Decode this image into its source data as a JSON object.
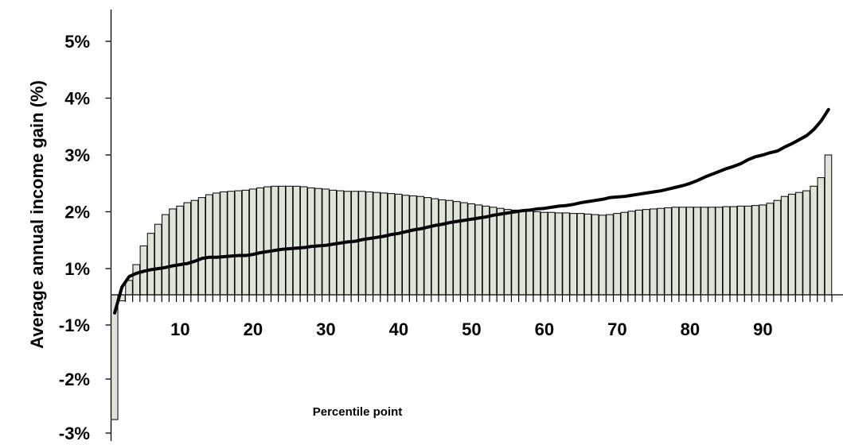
{
  "chart_data": {
    "type": "bar",
    "title": "",
    "xlabel": "Percentile point",
    "ylabel": "Average annual income gain (%)",
    "ylim": [
      -3,
      5
    ],
    "xlim": [
      1,
      99
    ],
    "y_ticks": [
      -3,
      -2,
      -1,
      1,
      2,
      3,
      4,
      5
    ],
    "y_tick_labels": [
      "-3%",
      "-2%",
      "-1%",
      "1%",
      "2%",
      "3%",
      "4%",
      "5%"
    ],
    "x_ticks": [
      10,
      20,
      30,
      40,
      50,
      60,
      70,
      80,
      90
    ],
    "x_tick_labels": [
      "10",
      "20",
      "30",
      "40",
      "50",
      "60",
      "70",
      "80",
      "90"
    ],
    "grid": false,
    "legend": "none",
    "colors": {
      "bars": "#dde5d8",
      "bar_border": "#000000",
      "line": "#000000"
    },
    "x": [
      1,
      2,
      3,
      4,
      5,
      6,
      7,
      8,
      9,
      10,
      11,
      12,
      13,
      14,
      15,
      16,
      17,
      18,
      19,
      20,
      21,
      22,
      23,
      24,
      25,
      26,
      27,
      28,
      29,
      30,
      31,
      32,
      33,
      34,
      35,
      36,
      37,
      38,
      39,
      40,
      41,
      42,
      43,
      44,
      45,
      46,
      47,
      48,
      49,
      50,
      51,
      52,
      53,
      54,
      55,
      56,
      57,
      58,
      59,
      60,
      61,
      62,
      63,
      64,
      65,
      66,
      67,
      68,
      69,
      70,
      71,
      72,
      73,
      74,
      75,
      76,
      77,
      78,
      79,
      80,
      81,
      82,
      83,
      84,
      85,
      86,
      87,
      88,
      89,
      90,
      91,
      92,
      93,
      94,
      95,
      96,
      97,
      98,
      99
    ],
    "series": [
      {
        "kind": "bar",
        "values": [
          -2.75,
          -0.2,
          0.55,
          1.07,
          1.4,
          1.62,
          1.78,
          1.95,
          2.05,
          2.1,
          2.16,
          2.2,
          2.25,
          2.3,
          2.33,
          2.35,
          2.36,
          2.37,
          2.38,
          2.4,
          2.42,
          2.44,
          2.45,
          2.45,
          2.45,
          2.45,
          2.44,
          2.42,
          2.41,
          2.4,
          2.38,
          2.37,
          2.36,
          2.36,
          2.36,
          2.35,
          2.34,
          2.33,
          2.32,
          2.31,
          2.29,
          2.28,
          2.27,
          2.25,
          2.23,
          2.21,
          2.2,
          2.18,
          2.16,
          2.14,
          2.12,
          2.1,
          2.08,
          2.06,
          2.04,
          2.03,
          2.02,
          2.01,
          2.0,
          1.99,
          1.99,
          1.98,
          1.98,
          1.97,
          1.97,
          1.96,
          1.95,
          1.94,
          1.95,
          1.97,
          1.99,
          2.01,
          2.03,
          2.04,
          2.05,
          2.06,
          2.07,
          2.08,
          2.08,
          2.08,
          2.08,
          2.08,
          2.08,
          2.08,
          2.09,
          2.09,
          2.1,
          2.1,
          2.11,
          2.12,
          2.15,
          2.2,
          2.27,
          2.31,
          2.34,
          2.37,
          2.45,
          2.6,
          3.0
        ]
      },
      {
        "kind": "line",
        "values": [
          -0.6,
          0.3,
          0.7,
          0.82,
          0.9,
          0.96,
          1.0,
          1.02,
          1.05,
          1.07,
          1.09,
          1.13,
          1.18,
          1.2,
          1.2,
          1.21,
          1.22,
          1.23,
          1.23,
          1.25,
          1.28,
          1.3,
          1.32,
          1.34,
          1.35,
          1.36,
          1.37,
          1.39,
          1.4,
          1.41,
          1.43,
          1.45,
          1.47,
          1.48,
          1.51,
          1.53,
          1.55,
          1.57,
          1.6,
          1.62,
          1.65,
          1.68,
          1.7,
          1.73,
          1.76,
          1.78,
          1.81,
          1.83,
          1.85,
          1.87,
          1.89,
          1.91,
          1.94,
          1.96,
          1.98,
          2.0,
          2.02,
          2.03,
          2.05,
          2.06,
          2.08,
          2.1,
          2.11,
          2.13,
          2.16,
          2.18,
          2.2,
          2.22,
          2.25,
          2.26,
          2.27,
          2.29,
          2.31,
          2.33,
          2.35,
          2.37,
          2.4,
          2.43,
          2.46,
          2.5,
          2.55,
          2.61,
          2.66,
          2.71,
          2.76,
          2.8,
          2.85,
          2.92,
          2.97,
          3.0,
          3.04,
          3.07,
          3.14,
          3.2,
          3.27,
          3.34,
          3.45,
          3.6,
          3.8
        ]
      }
    ]
  }
}
